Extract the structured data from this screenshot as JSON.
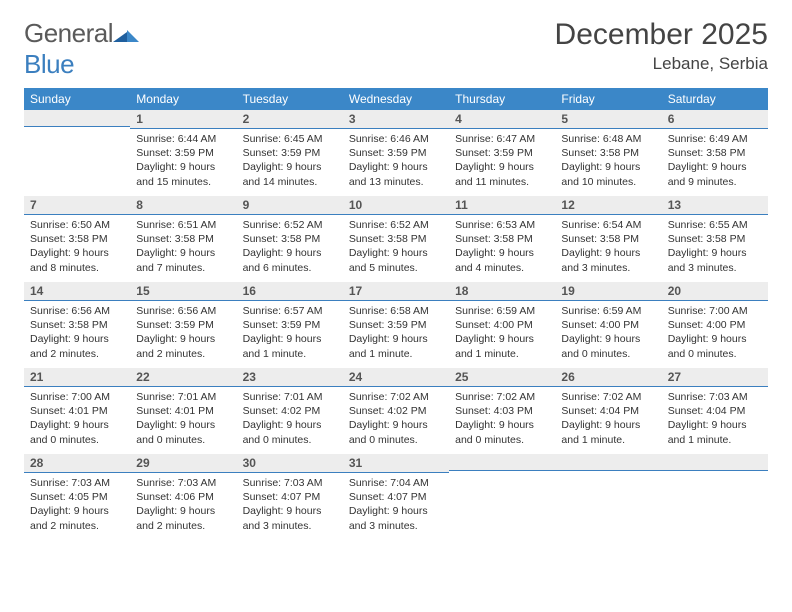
{
  "brand": {
    "text_a": "General",
    "text_b": "Blue"
  },
  "title": "December 2025",
  "location": "Lebane, Serbia",
  "header_bg": "#3b87c8",
  "header_fg": "#ffffff",
  "daynum_bg": "#ededed",
  "divider_color": "#3b7fbf",
  "text_color": "#333333",
  "weekdays": [
    "Sunday",
    "Monday",
    "Tuesday",
    "Wednesday",
    "Thursday",
    "Friday",
    "Saturday"
  ],
  "weeks": [
    [
      null,
      {
        "n": "1",
        "sr": "6:44 AM",
        "ss": "3:59 PM",
        "dl": "9 hours and 15 minutes."
      },
      {
        "n": "2",
        "sr": "6:45 AM",
        "ss": "3:59 PM",
        "dl": "9 hours and 14 minutes."
      },
      {
        "n": "3",
        "sr": "6:46 AM",
        "ss": "3:59 PM",
        "dl": "9 hours and 13 minutes."
      },
      {
        "n": "4",
        "sr": "6:47 AM",
        "ss": "3:59 PM",
        "dl": "9 hours and 11 minutes."
      },
      {
        "n": "5",
        "sr": "6:48 AM",
        "ss": "3:58 PM",
        "dl": "9 hours and 10 minutes."
      },
      {
        "n": "6",
        "sr": "6:49 AM",
        "ss": "3:58 PM",
        "dl": "9 hours and 9 minutes."
      }
    ],
    [
      {
        "n": "7",
        "sr": "6:50 AM",
        "ss": "3:58 PM",
        "dl": "9 hours and 8 minutes."
      },
      {
        "n": "8",
        "sr": "6:51 AM",
        "ss": "3:58 PM",
        "dl": "9 hours and 7 minutes."
      },
      {
        "n": "9",
        "sr": "6:52 AM",
        "ss": "3:58 PM",
        "dl": "9 hours and 6 minutes."
      },
      {
        "n": "10",
        "sr": "6:52 AM",
        "ss": "3:58 PM",
        "dl": "9 hours and 5 minutes."
      },
      {
        "n": "11",
        "sr": "6:53 AM",
        "ss": "3:58 PM",
        "dl": "9 hours and 4 minutes."
      },
      {
        "n": "12",
        "sr": "6:54 AM",
        "ss": "3:58 PM",
        "dl": "9 hours and 3 minutes."
      },
      {
        "n": "13",
        "sr": "6:55 AM",
        "ss": "3:58 PM",
        "dl": "9 hours and 3 minutes."
      }
    ],
    [
      {
        "n": "14",
        "sr": "6:56 AM",
        "ss": "3:58 PM",
        "dl": "9 hours and 2 minutes."
      },
      {
        "n": "15",
        "sr": "6:56 AM",
        "ss": "3:59 PM",
        "dl": "9 hours and 2 minutes."
      },
      {
        "n": "16",
        "sr": "6:57 AM",
        "ss": "3:59 PM",
        "dl": "9 hours and 1 minute."
      },
      {
        "n": "17",
        "sr": "6:58 AM",
        "ss": "3:59 PM",
        "dl": "9 hours and 1 minute."
      },
      {
        "n": "18",
        "sr": "6:59 AM",
        "ss": "4:00 PM",
        "dl": "9 hours and 1 minute."
      },
      {
        "n": "19",
        "sr": "6:59 AM",
        "ss": "4:00 PM",
        "dl": "9 hours and 0 minutes."
      },
      {
        "n": "20",
        "sr": "7:00 AM",
        "ss": "4:00 PM",
        "dl": "9 hours and 0 minutes."
      }
    ],
    [
      {
        "n": "21",
        "sr": "7:00 AM",
        "ss": "4:01 PM",
        "dl": "9 hours and 0 minutes."
      },
      {
        "n": "22",
        "sr": "7:01 AM",
        "ss": "4:01 PM",
        "dl": "9 hours and 0 minutes."
      },
      {
        "n": "23",
        "sr": "7:01 AM",
        "ss": "4:02 PM",
        "dl": "9 hours and 0 minutes."
      },
      {
        "n": "24",
        "sr": "7:02 AM",
        "ss": "4:02 PM",
        "dl": "9 hours and 0 minutes."
      },
      {
        "n": "25",
        "sr": "7:02 AM",
        "ss": "4:03 PM",
        "dl": "9 hours and 0 minutes."
      },
      {
        "n": "26",
        "sr": "7:02 AM",
        "ss": "4:04 PM",
        "dl": "9 hours and 1 minute."
      },
      {
        "n": "27",
        "sr": "7:03 AM",
        "ss": "4:04 PM",
        "dl": "9 hours and 1 minute."
      }
    ],
    [
      {
        "n": "28",
        "sr": "7:03 AM",
        "ss": "4:05 PM",
        "dl": "9 hours and 2 minutes."
      },
      {
        "n": "29",
        "sr": "7:03 AM",
        "ss": "4:06 PM",
        "dl": "9 hours and 2 minutes."
      },
      {
        "n": "30",
        "sr": "7:03 AM",
        "ss": "4:07 PM",
        "dl": "9 hours and 3 minutes."
      },
      {
        "n": "31",
        "sr": "7:04 AM",
        "ss": "4:07 PM",
        "dl": "9 hours and 3 minutes."
      },
      null,
      null,
      null
    ]
  ],
  "labels": {
    "sunrise": "Sunrise:",
    "sunset": "Sunset:",
    "daylight": "Daylight:"
  }
}
